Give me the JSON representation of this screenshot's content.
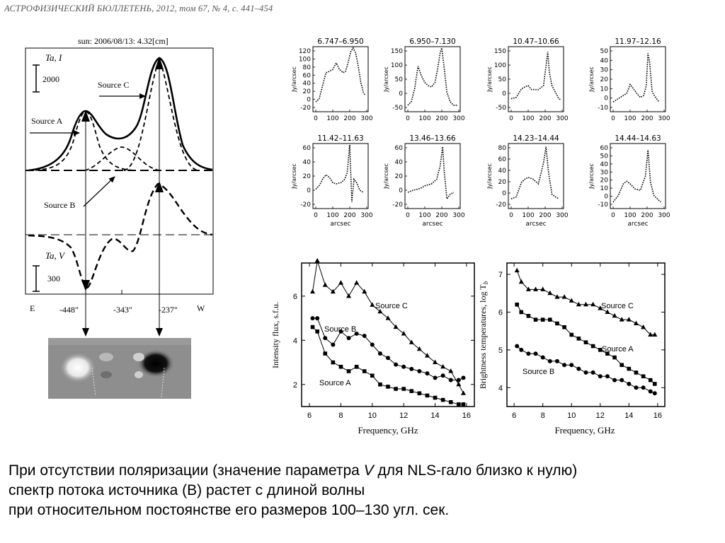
{
  "header": "АСТРОФИЗИЧЕСКИЙ БЮЛЛЕТЕНЬ, 2012, том 67, № 4, с. 441–454",
  "left_figure": {
    "title": "sun: 2006/08/13: 4.32[cm]",
    "ta_i": "Ta, I",
    "ta_v": "Ta, V",
    "scale_i": "2000",
    "scale_v": "300",
    "source_a": "Source A",
    "source_b": "Source B",
    "source_c": "Source C",
    "e_label": "E",
    "w_label": "W",
    "pos1": "-448\"",
    "pos2": "-343\"",
    "pos3": "-237\""
  },
  "small_plots": [
    {
      "title": "6.747–6.950",
      "yticks": [
        "120",
        "100",
        "80",
        "60",
        "40",
        "20",
        "0",
        "-20"
      ]
    },
    {
      "title": "6.950–7.130",
      "yticks": [
        "150",
        "100",
        "50",
        "0",
        "-50"
      ]
    },
    {
      "title": "10.47–10.66",
      "yticks": [
        "150",
        "100",
        "50",
        "0",
        "-50"
      ]
    },
    {
      "title": "11.97–12.16",
      "yticks": [
        "50",
        "40",
        "30",
        "20",
        "10",
        "0",
        "-10"
      ]
    },
    {
      "title": "11.42–11.63",
      "yticks": [
        "60",
        "40",
        "20",
        "0",
        "-20"
      ]
    },
    {
      "title": "13.46–13.66",
      "yticks": [
        "60",
        "40",
        "20",
        "0",
        "-20"
      ]
    },
    {
      "title": "14.23–14.44",
      "yticks": [
        "80",
        "60",
        "40",
        "20",
        "0",
        "-20"
      ]
    },
    {
      "title": "14.44–14.63",
      "yticks": [
        "60",
        "50",
        "40",
        "30",
        "20",
        "10",
        "0",
        "-10"
      ]
    }
  ],
  "small_common": {
    "ylabel": "Jy/arcsec",
    "xticks": [
      "0",
      "100",
      "200",
      "300"
    ],
    "xlabel": "arcsec"
  },
  "flux_chart": {
    "ylabel": "Intensity flux, s.f.u.",
    "xlabel": "Frequency, GHz",
    "xticks": [
      "6",
      "8",
      "10",
      "12",
      "14",
      "16"
    ],
    "yticks": [
      "2",
      "4",
      "6"
    ],
    "series_labels": [
      "Source C",
      "Source B",
      "Source A"
    ]
  },
  "tb_chart": {
    "ylabel": "Brightness temperatures, log T",
    "ylabel_sub": "b",
    "xlabel": "Frequency, GHz",
    "xticks": [
      "6",
      "8",
      "10",
      "12",
      "14",
      "16"
    ],
    "yticks": [
      "4",
      "5",
      "6",
      "7"
    ],
    "series_labels": [
      "Source C",
      "Source A",
      "Source B"
    ]
  },
  "chart_data": [
    {
      "type": "scatter",
      "xlabel": "Frequency, GHz",
      "ylabel": "Intensity flux, s.f.u.",
      "xlim": [
        5.5,
        16.5
      ],
      "ylim": [
        1,
        7.5
      ],
      "series": [
        {
          "name": "Source C",
          "x": [
            6.2,
            6.5,
            7.0,
            7.5,
            8.0,
            8.5,
            9.0,
            9.5,
            10.0,
            10.5,
            11.0,
            11.5,
            12.0,
            12.5,
            13.0,
            13.5,
            14.0,
            14.5,
            15.0,
            15.5,
            15.8
          ],
          "y": [
            6.2,
            7.6,
            6.5,
            6.2,
            6.6,
            6.0,
            6.6,
            6.2,
            5.6,
            5.3,
            5.0,
            4.6,
            4.3,
            3.9,
            3.6,
            3.3,
            3.0,
            2.8,
            2.6,
            2.0,
            1.6
          ]
        },
        {
          "name": "Source B",
          "x": [
            6.2,
            6.5,
            7.0,
            7.5,
            8.0,
            8.5,
            9.0,
            9.5,
            10.0,
            10.5,
            11.0,
            11.5,
            12.0,
            12.5,
            13.0,
            13.5,
            14.0,
            14.5,
            15.0,
            15.5,
            15.8
          ],
          "y": [
            5.0,
            5.0,
            4.1,
            3.8,
            4.4,
            4.1,
            4.3,
            4.2,
            3.8,
            3.4,
            3.2,
            2.9,
            2.8,
            2.7,
            2.6,
            2.5,
            2.3,
            2.4,
            2.2,
            2.2,
            2.3
          ]
        },
        {
          "name": "Source A",
          "x": [
            6.2,
            6.5,
            7.0,
            7.5,
            8.0,
            8.5,
            9.0,
            9.5,
            10.0,
            10.5,
            11.0,
            11.5,
            12.0,
            12.5,
            13.0,
            13.5,
            14.0,
            14.5,
            15.0,
            15.5,
            15.8
          ],
          "y": [
            4.6,
            4.4,
            3.4,
            3.0,
            2.8,
            2.6,
            2.8,
            2.6,
            2.4,
            2.0,
            1.9,
            1.8,
            1.8,
            1.7,
            1.6,
            1.5,
            1.4,
            1.3,
            1.2,
            1.1,
            1.1
          ]
        }
      ]
    },
    {
      "type": "scatter",
      "xlabel": "Frequency, GHz",
      "ylabel": "Brightness temperatures, log Tb",
      "xlim": [
        5.5,
        16.5
      ],
      "ylim": [
        3.5,
        7.3
      ],
      "series": [
        {
          "name": "Source C",
          "x": [
            6.2,
            6.5,
            7.0,
            7.5,
            8.0,
            8.5,
            9.0,
            9.5,
            10.0,
            10.5,
            11.0,
            11.5,
            12.0,
            12.5,
            13.0,
            13.5,
            14.0,
            14.5,
            15.0,
            15.5,
            15.8
          ],
          "y": [
            7.1,
            6.8,
            6.6,
            6.6,
            6.6,
            6.5,
            6.4,
            6.4,
            6.3,
            6.2,
            6.2,
            6.2,
            6.1,
            6.0,
            5.9,
            5.8,
            5.8,
            5.7,
            5.6,
            5.4,
            5.4
          ]
        },
        {
          "name": "Source A",
          "x": [
            6.2,
            6.5,
            7.0,
            7.5,
            8.0,
            8.5,
            9.0,
            9.5,
            10.0,
            10.5,
            11.0,
            11.5,
            12.0,
            12.5,
            13.0,
            13.5,
            14.0,
            14.5,
            15.0,
            15.5,
            15.8
          ],
          "y": [
            6.2,
            6.0,
            5.9,
            5.8,
            5.8,
            5.8,
            5.7,
            5.6,
            5.4,
            5.3,
            5.2,
            5.1,
            5.0,
            4.9,
            4.8,
            4.6,
            4.5,
            4.4,
            4.3,
            4.2,
            4.1
          ]
        },
        {
          "name": "Source B",
          "x": [
            6.2,
            6.5,
            7.0,
            7.5,
            8.0,
            8.5,
            9.0,
            9.5,
            10.0,
            10.5,
            11.0,
            11.5,
            12.0,
            12.5,
            13.0,
            13.5,
            14.0,
            14.5,
            15.0,
            15.5,
            15.8
          ],
          "y": [
            5.1,
            5.0,
            4.9,
            4.9,
            4.8,
            4.7,
            4.7,
            4.6,
            4.6,
            4.5,
            4.4,
            4.4,
            4.3,
            4.3,
            4.2,
            4.2,
            4.1,
            4.0,
            4.0,
            3.9,
            3.85
          ]
        }
      ]
    }
  ],
  "caption": {
    "line1_a": "При отсутствии поляризации (значение параметра ",
    "line1_v": "V",
    "line1_b": " для NLS-гало близко к нулю)",
    "line2": "спектр потока источника (B) растет с длиной волны",
    "line3": "при относительном постоянстве его размеров 100–130  угл. сек."
  }
}
